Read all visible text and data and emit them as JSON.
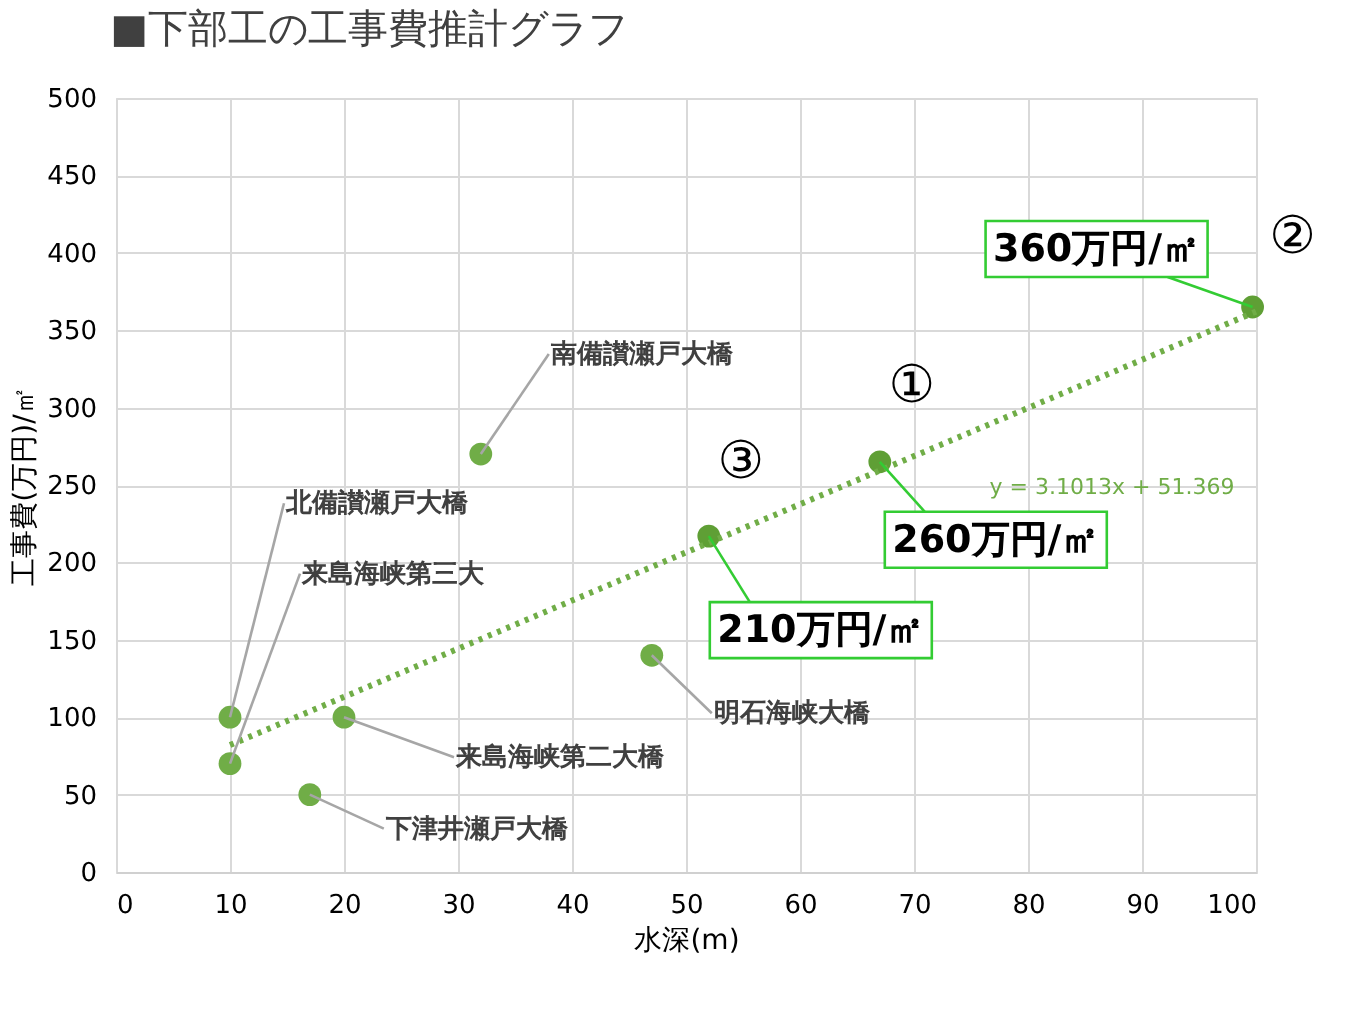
{
  "chart_data": {
    "type": "scatter",
    "title": "■下部工の工事費推計グラフ",
    "xlabel": "水深(m)",
    "ylabel": "工事費(万円)/㎡",
    "xlim": [
      0,
      100
    ],
    "xticks": [
      0,
      10,
      20,
      30,
      40,
      50,
      60,
      70,
      80,
      90,
      100
    ],
    "ylim": [
      0,
      500
    ],
    "yticks": [
      0,
      50,
      100,
      150,
      200,
      250,
      300,
      350,
      400,
      450,
      500
    ],
    "grid": true,
    "marker": "circle",
    "series": [
      {
        "color": "#70ad47",
        "x": [
          10,
          10,
          17,
          20,
          32,
          47
        ],
        "values": [
          100,
          70,
          50,
          100,
          270,
          140
        ]
      },
      {
        "color": "#5f9f35",
        "x": [
          52,
          67,
          99.7
        ],
        "values": [
          217,
          265,
          365
        ]
      },
      {
        "type": "line",
        "color": "#70ad47",
        "line_style": "dotted",
        "marker": "none",
        "x": [
          10,
          100
        ],
        "values": [
          82,
          362
        ]
      }
    ],
    "annotations": [
      {
        "text": "北備讃瀬戸大橋",
        "x": 10,
        "y": 100
      },
      {
        "text": "来島海峡第三大",
        "x": 10,
        "y": 70
      },
      {
        "text": "下津井瀬戸大橋",
        "x": 17,
        "y": 50
      },
      {
        "text": "来島海峡第二大橋",
        "x": 20,
        "y": 100
      },
      {
        "text": "南備讃瀬戸大橋",
        "x": 32,
        "y": 270
      },
      {
        "text": "明石海峡大橋",
        "x": 47,
        "y": 140
      },
      {
        "text": "360万円/㎡",
        "x": 99.7,
        "y": 365
      },
      {
        "text": "260万円/㎡",
        "x": 67,
        "y": 265
      },
      {
        "text": "210万円/㎡",
        "x": 52,
        "y": 217
      },
      {
        "text": "②",
        "x": 99.7,
        "y": 365
      },
      {
        "text": "①",
        "x": 67,
        "y": 265
      },
      {
        "text": "③",
        "x": 52,
        "y": 217
      },
      {
        "text": "y = 3.1013x + 51.369",
        "x": 80,
        "y": 299.5
      }
    ]
  }
}
